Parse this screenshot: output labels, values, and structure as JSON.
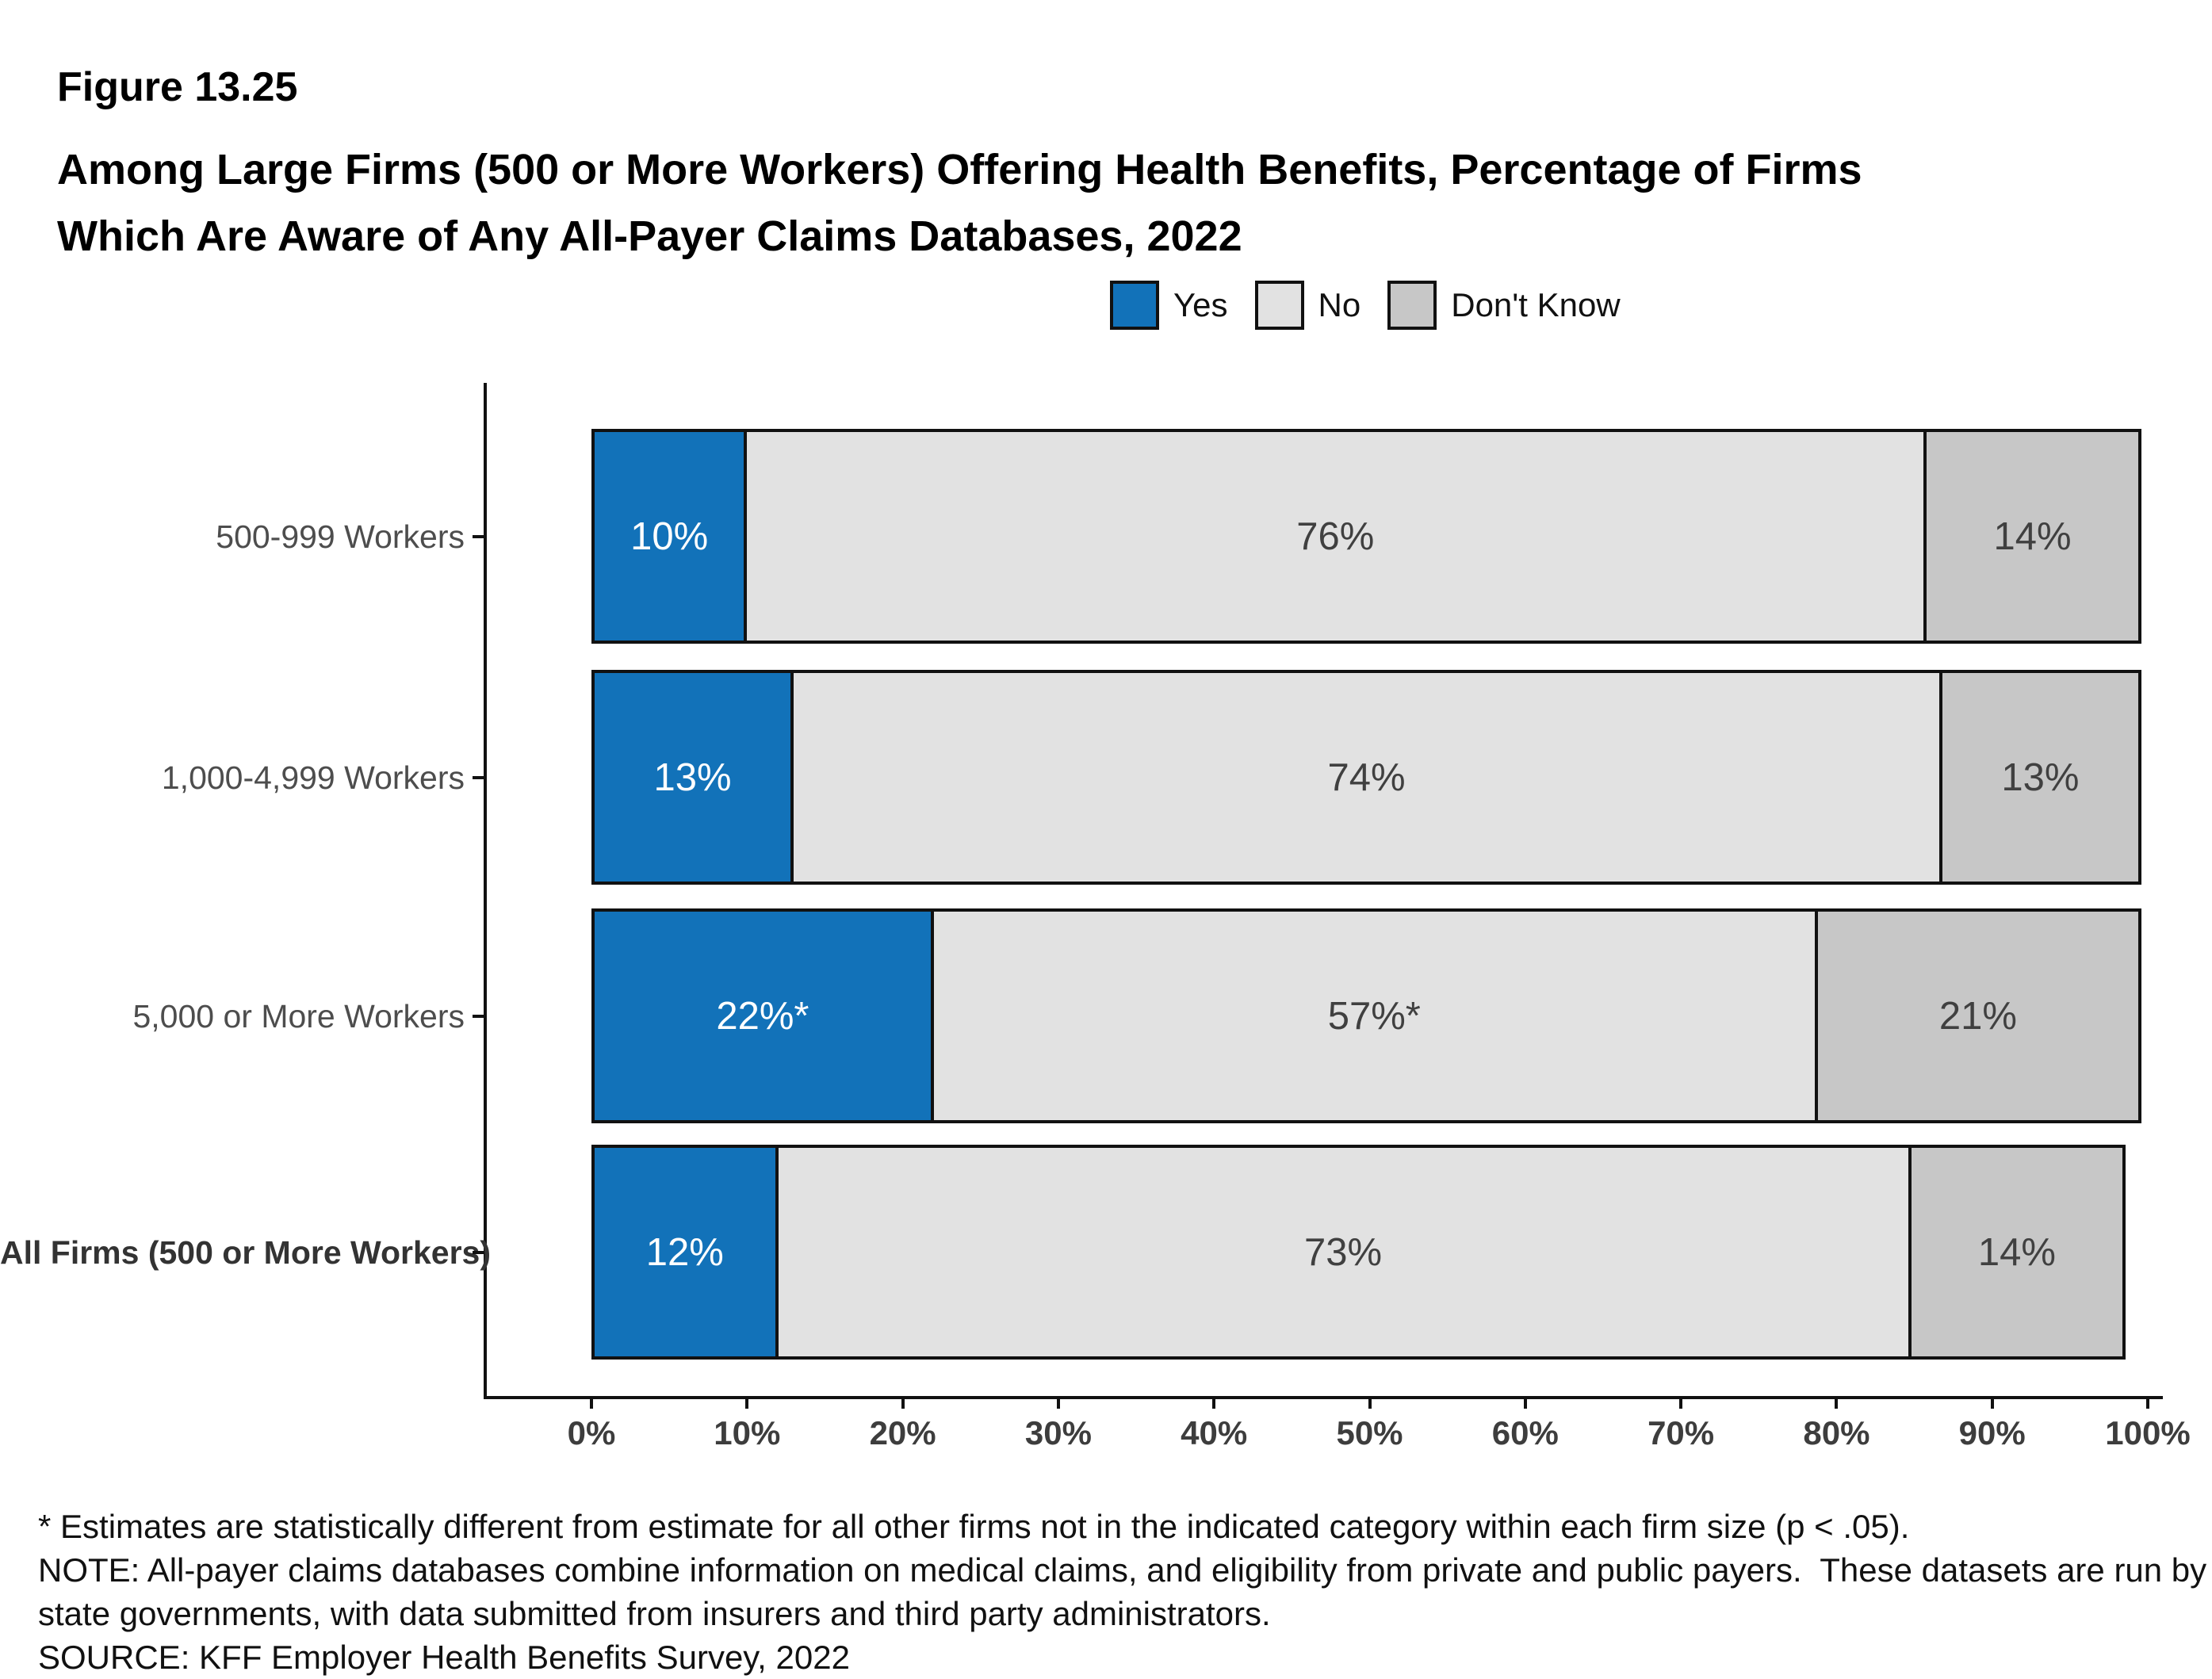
{
  "title": {
    "figure": "Figure 13.25",
    "line1": "Among Large Firms (500 or More Workers) Offering Health Benefits, Percentage of Firms",
    "line2": "Which Are Aware of Any All-Payer Claims Databases, 2022"
  },
  "legend": [
    {
      "label": "Yes",
      "color": "#1272B9"
    },
    {
      "label": "No",
      "color": "#E2E2E2"
    },
    {
      "label": "Don't Know",
      "color": "#C7C7C7"
    }
  ],
  "chart_data": {
    "type": "bar",
    "orientation": "horizontal-stacked",
    "title": "Among Large Firms (500 or More Workers) Offering Health Benefits, Percentage of Firms Which Are Aware of Any All-Payer Claims Databases, 2022",
    "categories": [
      {
        "label": "500-999 Workers",
        "bold": false
      },
      {
        "label": "1,000-4,999 Workers",
        "bold": false
      },
      {
        "label": "5,000 or More Workers",
        "bold": false
      },
      {
        "label": "All Firms (500 or More Workers)",
        "bold": true
      }
    ],
    "series": [
      {
        "name": "Yes",
        "color": "#1272B9",
        "label_color": "#ffffff",
        "values": [
          10,
          13,
          22,
          12
        ],
        "labels": [
          "10%",
          "13%",
          "22%*",
          "12%"
        ]
      },
      {
        "name": "No",
        "color": "#E2E2E2",
        "label_color": "#404040",
        "values": [
          76,
          74,
          57,
          73
        ],
        "labels": [
          "76%",
          "74%",
          "57%*",
          "73%"
        ]
      },
      {
        "name": "Don't Know",
        "color": "#C7C7C7",
        "label_color": "#404040",
        "values": [
          14,
          13,
          21,
          14
        ],
        "labels": [
          "14%",
          "13%",
          "21%",
          "14%"
        ]
      }
    ],
    "x_ticks": [
      "0%",
      "10%",
      "20%",
      "30%",
      "40%",
      "50%",
      "60%",
      "70%",
      "80%",
      "90%",
      "100%"
    ],
    "xlim": [
      0,
      100
    ],
    "legend_position": "top",
    "grid": false
  },
  "footnotes": {
    "lines": [
      "* Estimates are statistically different from estimate for all other firms not in the indicated category within each firm size (p < .05).",
      "NOTE: All-payer claims databases combine information on medical claims, and eligibility from private and public payers.  These datasets are run by",
      "state governments, with data submitted from insurers and third party administrators.",
      "SOURCE: KFF Employer Health Benefits Survey, 2022"
    ]
  }
}
